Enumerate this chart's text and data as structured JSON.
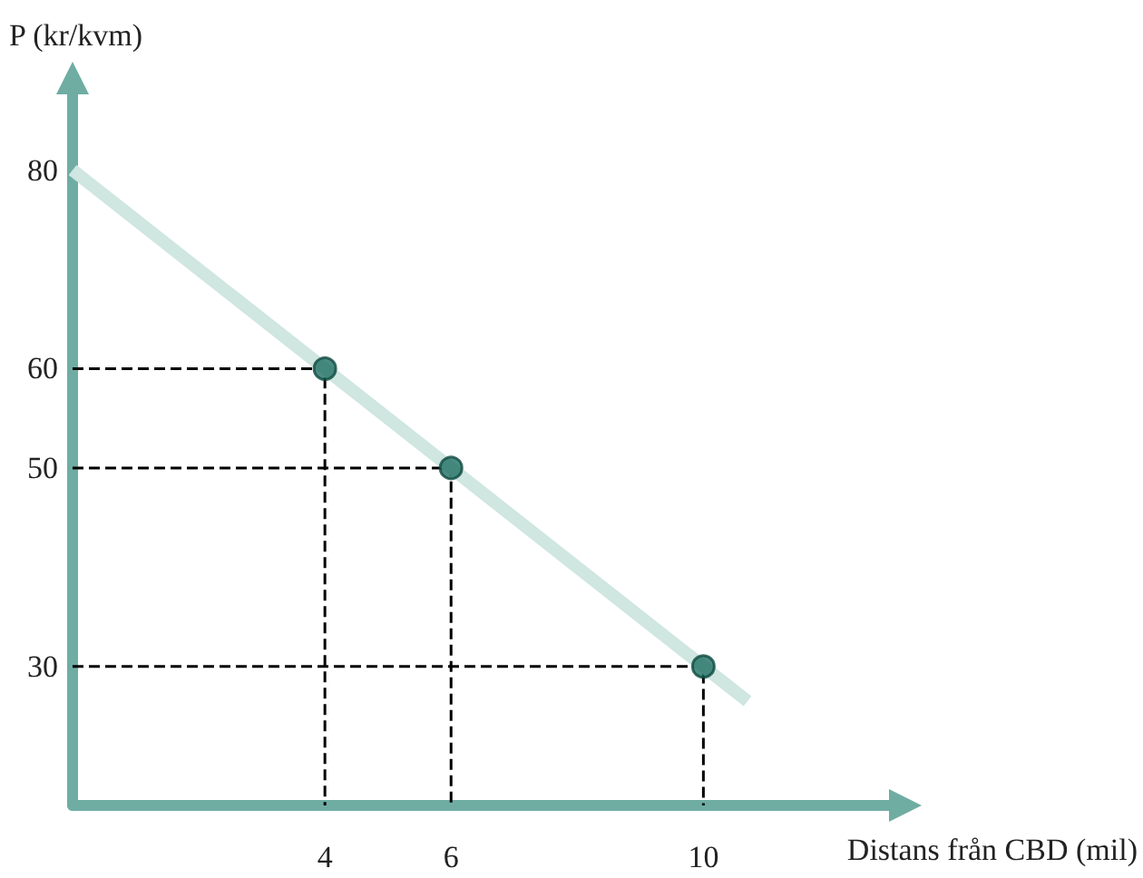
{
  "chart_data": {
    "type": "scatter",
    "xlabel": "Distans från CBD (mil)",
    "ylabel": "P (kr/kvm)",
    "series": [
      {
        "type": "line",
        "color": "#cfe6e1",
        "x": [
          0,
          10.7
        ],
        "values": [
          80,
          26.5
        ],
        "marker": "none"
      },
      {
        "type": "line",
        "color": "#000000",
        "line_style": "dashed",
        "x": [
          0,
          4,
          4
        ],
        "values": [
          60,
          60,
          16
        ],
        "marker": "none"
      },
      {
        "type": "line",
        "color": "#000000",
        "line_style": "dashed",
        "x": [
          0,
          6,
          6
        ],
        "values": [
          50,
          50,
          16
        ],
        "marker": "none"
      },
      {
        "type": "line",
        "color": "#000000",
        "line_style": "dashed",
        "x": [
          0,
          10,
          10
        ],
        "values": [
          30,
          30,
          16
        ],
        "marker": "none"
      },
      {
        "color": "#1f6f63",
        "x": [
          4,
          6,
          10
        ],
        "values": [
          60,
          50,
          30
        ],
        "marker": "circle"
      }
    ],
    "xlim": [
      0,
      13
    ],
    "ylim": [
      16,
      88
    ],
    "xticks": [
      4,
      6,
      10
    ],
    "yticks": [
      30,
      50,
      60,
      80
    ]
  }
}
